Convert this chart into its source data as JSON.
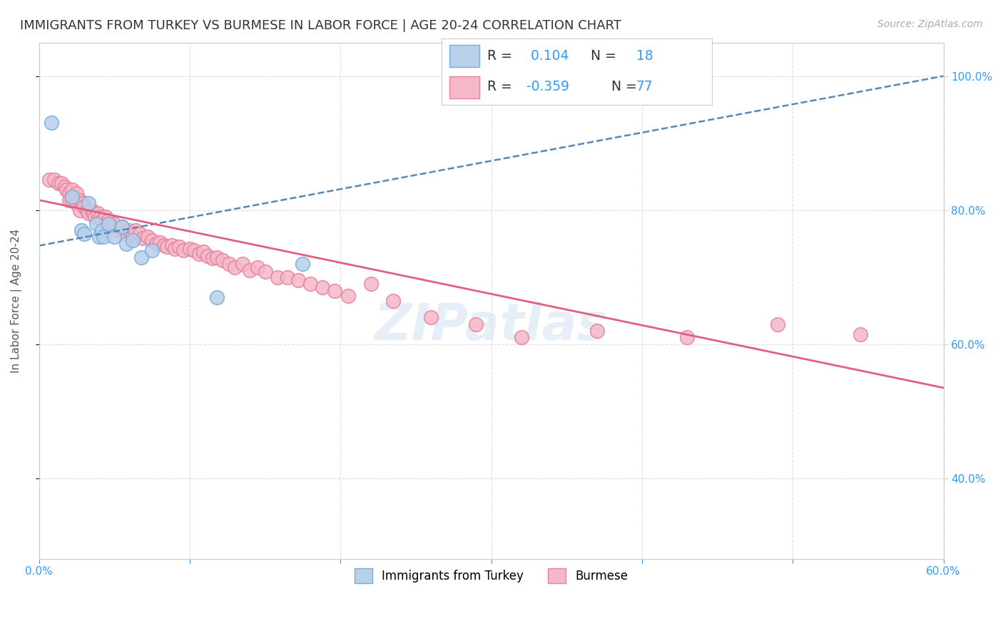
{
  "title": "IMMIGRANTS FROM TURKEY VS BURMESE IN LABOR FORCE | AGE 20-24 CORRELATION CHART",
  "source": "Source: ZipAtlas.com",
  "ylabel": "In Labor Force | Age 20-24",
  "xlim": [
    0.0,
    0.6
  ],
  "ylim": [
    0.28,
    1.05
  ],
  "xticks": [
    0.0,
    0.1,
    0.2,
    0.3,
    0.4,
    0.5,
    0.6
  ],
  "yticks_right": [
    0.4,
    0.6,
    0.8,
    1.0
  ],
  "ytick_labels_right": [
    "40.0%",
    "60.0%",
    "80.0%",
    "100.0%"
  ],
  "xtick_labels": [
    "0.0%",
    "",
    "",
    "",
    "",
    "",
    "60.0%"
  ],
  "legend_r_turkey": "0.104",
  "legend_n_turkey": "18",
  "legend_r_burmese": "-0.359",
  "legend_n_burmese": "77",
  "turkey_color": "#b8d0e8",
  "burmese_color": "#f5b8c8",
  "turkey_edge": "#7aaadd",
  "burmese_edge": "#e8819a",
  "trendline_turkey_color": "#5588bb",
  "trendline_burmese_color": "#e06080",
  "watermark": "ZIPatlas",
  "turkey_trendline_x0": 0.0,
  "turkey_trendline_y0": 0.747,
  "turkey_trendline_x1": 0.6,
  "turkey_trendline_y1": 1.0,
  "burmese_trendline_x0": 0.0,
  "burmese_trendline_y0": 0.815,
  "burmese_trendline_x1": 0.6,
  "burmese_trendline_y1": 0.535,
  "turkey_x": [
    0.008,
    0.022,
    0.028,
    0.03,
    0.033,
    0.038,
    0.04,
    0.042,
    0.043,
    0.046,
    0.05,
    0.055,
    0.058,
    0.062,
    0.068,
    0.075,
    0.118,
    0.175
  ],
  "turkey_y": [
    0.93,
    0.82,
    0.77,
    0.765,
    0.81,
    0.78,
    0.76,
    0.77,
    0.76,
    0.78,
    0.76,
    0.775,
    0.75,
    0.755,
    0.73,
    0.74,
    0.67,
    0.72
  ],
  "burmese_x": [
    0.007,
    0.01,
    0.013,
    0.015,
    0.017,
    0.018,
    0.02,
    0.02,
    0.022,
    0.022,
    0.025,
    0.025,
    0.027,
    0.027,
    0.029,
    0.03,
    0.032,
    0.033,
    0.035,
    0.036,
    0.037,
    0.039,
    0.041,
    0.042,
    0.044,
    0.044,
    0.046,
    0.047,
    0.05,
    0.052,
    0.055,
    0.058,
    0.06,
    0.062,
    0.064,
    0.067,
    0.069,
    0.072,
    0.075,
    0.078,
    0.08,
    0.083,
    0.085,
    0.088,
    0.09,
    0.093,
    0.096,
    0.1,
    0.103,
    0.106,
    0.109,
    0.112,
    0.115,
    0.118,
    0.122,
    0.126,
    0.13,
    0.135,
    0.14,
    0.145,
    0.15,
    0.158,
    0.165,
    0.172,
    0.18,
    0.188,
    0.196,
    0.205,
    0.22,
    0.235,
    0.26,
    0.29,
    0.32,
    0.37,
    0.43,
    0.49,
    0.545
  ],
  "burmese_y": [
    0.845,
    0.845,
    0.84,
    0.84,
    0.835,
    0.83,
    0.825,
    0.815,
    0.83,
    0.815,
    0.825,
    0.81,
    0.815,
    0.8,
    0.81,
    0.805,
    0.8,
    0.795,
    0.8,
    0.795,
    0.79,
    0.795,
    0.79,
    0.785,
    0.79,
    0.775,
    0.785,
    0.778,
    0.78,
    0.77,
    0.775,
    0.765,
    0.77,
    0.76,
    0.77,
    0.765,
    0.758,
    0.76,
    0.755,
    0.75,
    0.752,
    0.748,
    0.745,
    0.748,
    0.742,
    0.745,
    0.74,
    0.742,
    0.74,
    0.735,
    0.738,
    0.732,
    0.728,
    0.73,
    0.725,
    0.72,
    0.715,
    0.72,
    0.71,
    0.715,
    0.708,
    0.7,
    0.7,
    0.695,
    0.69,
    0.685,
    0.68,
    0.672,
    0.69,
    0.665,
    0.64,
    0.63,
    0.61,
    0.62,
    0.61,
    0.63,
    0.615
  ],
  "title_fontsize": 13,
  "axis_label_fontsize": 11,
  "tick_fontsize": 11,
  "source_fontsize": 10
}
